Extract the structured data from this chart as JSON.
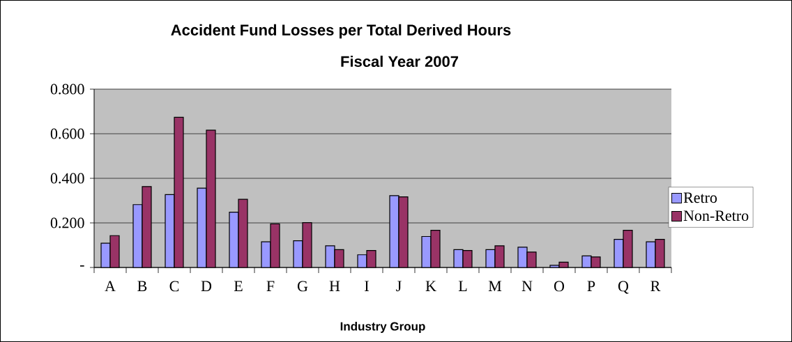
{
  "chart_data": {
    "type": "bar",
    "title": "Accident Fund Losses per Total Derived Hours",
    "subtitle": "Fiscal Year 2007",
    "xlabel": "Industry Group",
    "categories": [
      "A",
      "B",
      "C",
      "D",
      "E",
      "F",
      "G",
      "H",
      "I",
      "J",
      "K",
      "L",
      "M",
      "N",
      "O",
      "P",
      "Q",
      "R"
    ],
    "series": [
      {
        "name": "Retro",
        "color": "#9999ff",
        "values": [
          0.109,
          0.282,
          0.327,
          0.356,
          0.248,
          0.115,
          0.12,
          0.097,
          0.057,
          0.322,
          0.139,
          0.08,
          0.08,
          0.091,
          0.01,
          0.052,
          0.126,
          0.115
        ]
      },
      {
        "name": "Non-Retro",
        "color": "#993366",
        "values": [
          0.143,
          0.363,
          0.674,
          0.616,
          0.306,
          0.196,
          0.201,
          0.08,
          0.076,
          0.317,
          0.167,
          0.076,
          0.097,
          0.069,
          0.024,
          0.047,
          0.167,
          0.126
        ]
      }
    ],
    "ylim": [
      0,
      0.8
    ],
    "yticks": [
      {
        "value": 0,
        "label": "-"
      },
      {
        "value": 0.2,
        "label": "0.200"
      },
      {
        "value": 0.4,
        "label": "0.400"
      },
      {
        "value": 0.6,
        "label": "0.600"
      },
      {
        "value": 0.8,
        "label": "0.800"
      }
    ],
    "grid": "y",
    "legend": "right"
  }
}
